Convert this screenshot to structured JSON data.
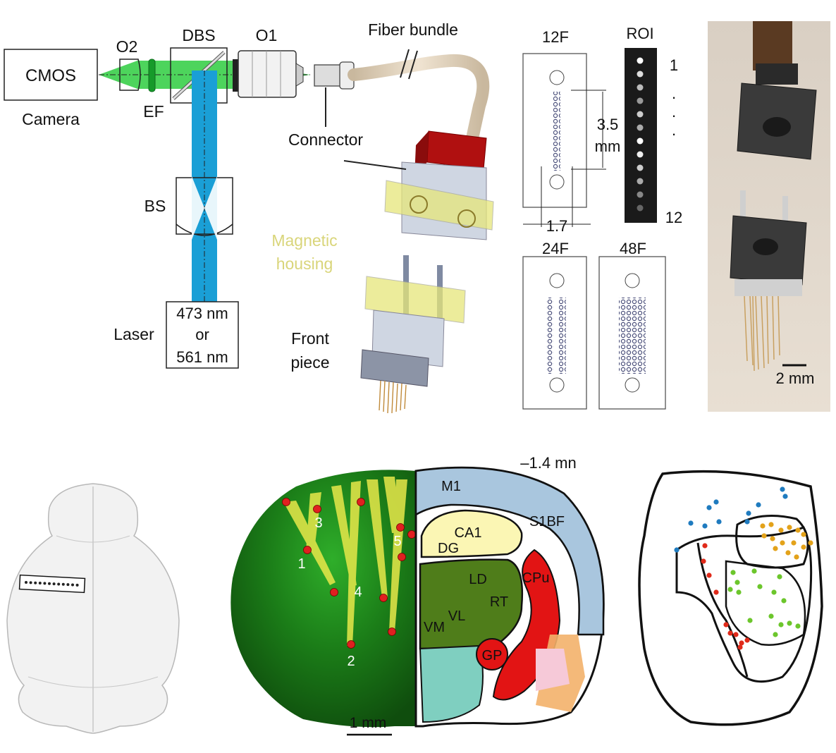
{
  "optics": {
    "cmos": "CMOS",
    "camera": "Camera",
    "o2": "O2",
    "ef": "EF",
    "dbs": "DBS",
    "o1": "O1",
    "fiber_bundle": "Fiber bundle",
    "connector": "Connector",
    "bs": "BS",
    "laser": "Laser",
    "laser_line1": "473 nm",
    "laser_line2": "or",
    "laser_line3": "561 nm",
    "magnetic_line1": "Magnetic",
    "magnetic_line2": "housing",
    "front_line1": "Front",
    "front_line2": "piece"
  },
  "bundles": {
    "f12": "12F",
    "roi": "ROI",
    "roi_first": "1",
    "roi_dots": ".",
    "roi_last": "12",
    "dim_35": "3.5",
    "dim_mm": "mm",
    "dim_17": "1.7",
    "f24": "24F",
    "f48": "48F"
  },
  "photo": {
    "scale": "2 mm"
  },
  "brain": {
    "coord": "–1.4 mn",
    "scale": "1 mm",
    "fiber_labels": [
      "1",
      "2",
      "3",
      "4",
      "5"
    ],
    "regions": {
      "m1": "M1",
      "s1bf": "S1BF",
      "ca1": "CA1",
      "dg": "DG",
      "ld": "LD",
      "cpu": "CPu",
      "rt": "RT",
      "vl": "VL",
      "vm": "VM",
      "gp": "GP"
    }
  },
  "colors": {
    "laser_blue": "#1a9fd6",
    "emission_green": "#2ecc40",
    "housing_yellow": "#e6e67a",
    "cortex_blue": "#a9c6de",
    "hippocampus": "#fbf6b4",
    "thalamus": "#4f7d1a",
    "striatum_red": "#e21414",
    "group_blue": "#1f7bbf",
    "group_orange": "#e3a21a",
    "group_red": "#e02a1a",
    "group_green": "#6cc62c"
  }
}
